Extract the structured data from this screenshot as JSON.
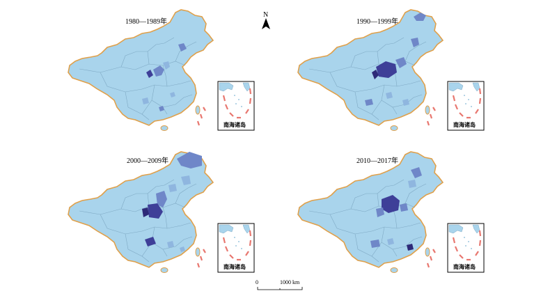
{
  "panels": [
    {
      "title": "1980—1989年",
      "inset_label": "南海诸岛",
      "intensity": "low"
    },
    {
      "title": "1990—1999年",
      "inset_label": "南海诸岛",
      "intensity": "medium"
    },
    {
      "title": "2000—2009年",
      "inset_label": "南海诸岛",
      "intensity": "high"
    },
    {
      "title": "2010—2017年",
      "inset_label": "南海诸岛",
      "intensity": "high"
    }
  ],
  "north_arrow": {
    "label": "N"
  },
  "scale_bar": {
    "start": "0",
    "end": "1000 km"
  },
  "colors": {
    "land": "#a9d4ec",
    "border": "#e0a04a",
    "internal": "#7fa9c4",
    "light_blue": "#8fb6df",
    "mid_blue": "#6f87c8",
    "dark_blue": "#3e3f98",
    "darkest_blue": "#2d2a78",
    "island_dash": "#e8776f"
  }
}
